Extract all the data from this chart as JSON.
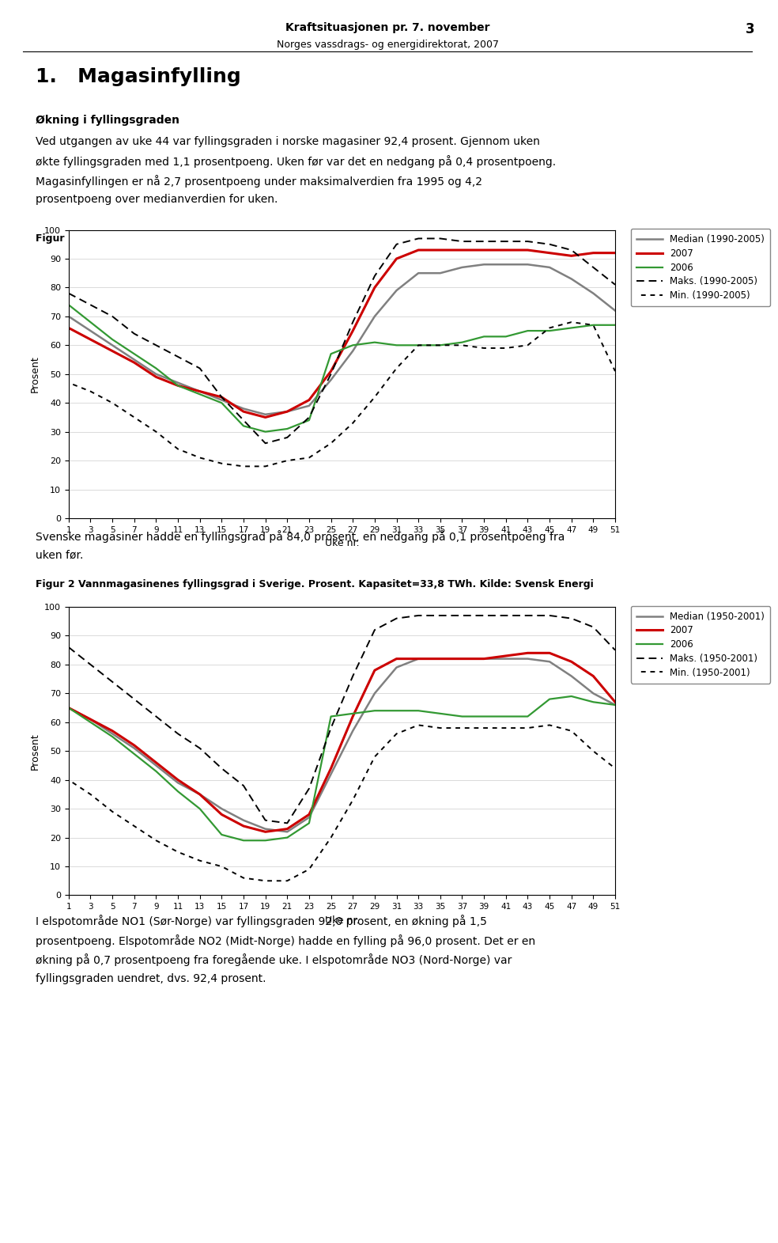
{
  "header_title": "Kraftsituasjonen pr. 7. november",
  "header_subtitle": "Norges vassdrags- og energidirektorat, 2007",
  "page_number": "3",
  "section_title": "1.   Magasinfylling",
  "para1_bold": "Økning i fyllingsgraden",
  "para1_line1": "Ved utgangen av uke 44 var fyllingsgraden i norske magasiner 92,4 prosent. Gjennom uken",
  "para1_line2": "økte fyllingsgraden med 1,1 prosentpoeng. Uken før var det en nedgang på 0,4 prosentpoeng.",
  "para1_line3": "Magasinfyllingen er nå 2,7 prosentpoeng under maksimalverdien fra 1995 og 4,2",
  "para1_line4": "prosentpoeng over medianverdien for uken.",
  "fig1_caption": "Figur 1 Vannmagasinenes fyllingsgrad i Norge. Prosent. Kapasitet=84,3 TWh. Kilde: NVE",
  "fig1_ylabel": "Prosent",
  "fig1_xlabel": "Uke nr.",
  "fig1_legend": [
    "Median (1990-2005)",
    "2007",
    "2006",
    "Maks. (1990-2005)",
    "Min. (1990-2005)"
  ],
  "fig2_caption": "Figur 2 Vannmagasinenes fyllingsgrad i Sverige. Prosent. Kapasitet=33,8 TWh. Kilde: Svensk Energi",
  "fig2_ylabel": "Prosent",
  "fig2_xlabel": "Uke nr.",
  "fig2_legend": [
    "Median (1950-2001)",
    "2007",
    "2006",
    "Maks. (1950-2001)",
    "Min. (1950-2001)"
  ],
  "para2_line1": "Svenske magasiner hadde en fyllingsgrad på 84,0 prosent, en nedgang på 0,1 prosentpoeng fra",
  "para2_line2": "uken før.",
  "para3_line1": "I elspotområde NO1 (Sør-Norge) var fyllingsgraden 92,0 prosent, en økning på 1,5",
  "para3_line2": "prosentpoeng. Elspotområde NO2 (Midt-Norge) hadde en fylling på 96,0 prosent. Det er en",
  "para3_line3": "økning på 0,7 prosentpoeng fra foregående uke. I elspotområde NO3 (Nord-Norge) var",
  "para3_line4": "fyllingsgraden uendret, dvs. 92,4 prosent.",
  "weeks": [
    1,
    3,
    5,
    7,
    9,
    11,
    13,
    15,
    17,
    19,
    21,
    23,
    25,
    27,
    29,
    31,
    33,
    35,
    37,
    39,
    41,
    43,
    45,
    47,
    49,
    51
  ],
  "fig1_median": [
    70,
    65,
    60,
    55,
    50,
    47,
    44,
    41,
    38,
    36,
    37,
    39,
    48,
    58,
    70,
    79,
    85,
    85,
    87,
    88,
    88,
    88,
    87,
    83,
    78,
    72
  ],
  "fig1_2007": [
    66,
    62,
    58,
    54,
    49,
    46,
    44,
    42,
    37,
    35,
    37,
    41,
    51,
    65,
    80,
    90,
    93,
    93,
    93,
    93,
    93,
    93,
    92,
    91,
    92,
    92
  ],
  "fig1_2006": [
    74,
    68,
    62,
    57,
    52,
    46,
    43,
    40,
    32,
    30,
    31,
    34,
    57,
    60,
    61,
    60,
    60,
    60,
    61,
    63,
    63,
    65,
    65,
    66,
    67,
    67
  ],
  "fig1_max": [
    78,
    74,
    70,
    64,
    60,
    56,
    52,
    42,
    34,
    26,
    28,
    35,
    50,
    68,
    84,
    95,
    97,
    97,
    96,
    96,
    96,
    96,
    95,
    93,
    87,
    81
  ],
  "fig1_min": [
    47,
    44,
    40,
    35,
    30,
    24,
    21,
    19,
    18,
    18,
    20,
    21,
    26,
    33,
    42,
    52,
    60,
    60,
    60,
    59,
    59,
    60,
    66,
    68,
    67,
    51
  ],
  "fig2_median": [
    65,
    61,
    56,
    51,
    45,
    39,
    35,
    30,
    26,
    23,
    22,
    27,
    42,
    57,
    70,
    79,
    82,
    82,
    82,
    82,
    82,
    82,
    81,
    76,
    70,
    66
  ],
  "fig2_2007": [
    65,
    61,
    57,
    52,
    46,
    40,
    35,
    28,
    24,
    22,
    23,
    28,
    44,
    62,
    78,
    82,
    82,
    82,
    82,
    82,
    83,
    84,
    84,
    81,
    76,
    67
  ],
  "fig2_2006": [
    65,
    60,
    55,
    49,
    43,
    36,
    30,
    21,
    19,
    19,
    20,
    25,
    62,
    63,
    64,
    64,
    64,
    63,
    62,
    62,
    62,
    62,
    68,
    69,
    67,
    66
  ],
  "fig2_max": [
    86,
    80,
    74,
    68,
    62,
    56,
    51,
    44,
    38,
    26,
    25,
    37,
    58,
    76,
    92,
    96,
    97,
    97,
    97,
    97,
    97,
    97,
    97,
    96,
    93,
    85
  ],
  "fig2_min": [
    40,
    35,
    29,
    24,
    19,
    15,
    12,
    10,
    6,
    5,
    5,
    9,
    20,
    33,
    48,
    56,
    59,
    58,
    58,
    58,
    58,
    58,
    59,
    57,
    50,
    44
  ],
  "color_median": "#808080",
  "color_2007": "#cc0000",
  "color_2006": "#339933",
  "color_maks": "#000000",
  "color_min": "#000000",
  "ylim": [
    0,
    100
  ],
  "yticks": [
    0,
    10,
    20,
    30,
    40,
    50,
    60,
    70,
    80,
    90,
    100
  ]
}
